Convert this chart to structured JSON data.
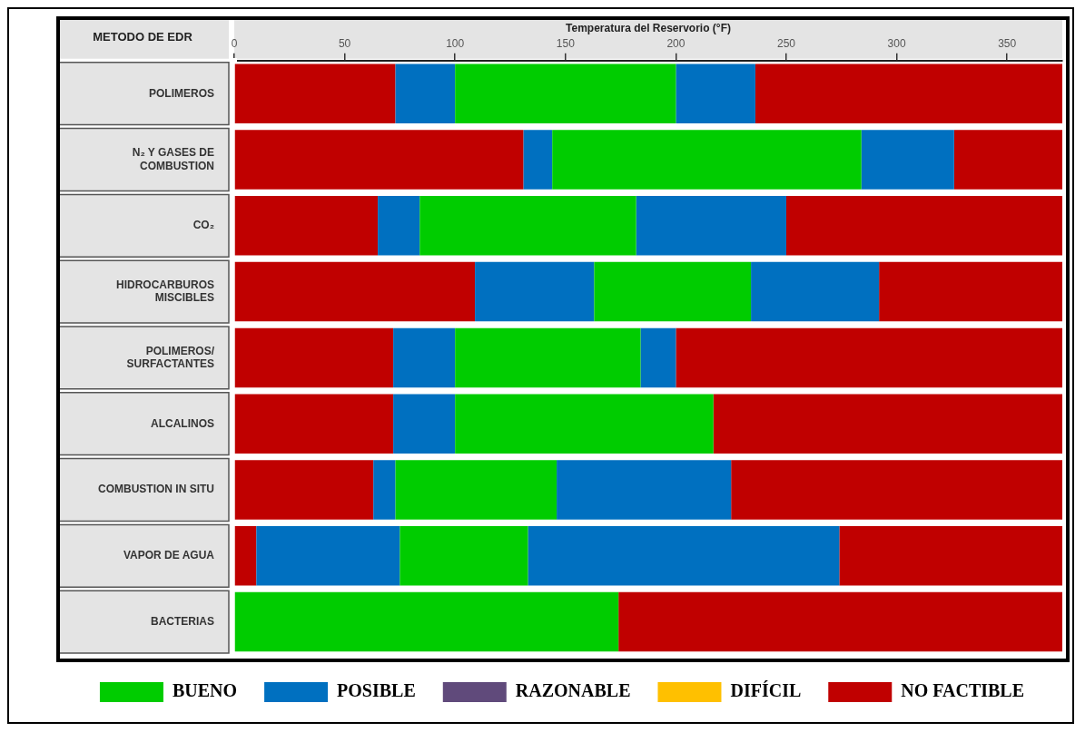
{
  "chart_data": {
    "type": "bar",
    "orientation": "horizontal",
    "xlabel": "Temperatura del Reservorio (°F)",
    "ylabel": "METODO DE EDR",
    "categories": [
      "POLIMEROS",
      "N₂ Y GASES DE COMBUSTION",
      "CO₂",
      "HIDROCARBUROS MISCIBLES",
      "POLIMEROS/SURFACTANTES",
      "ALCALINOS",
      "COMBUSTION IN SITU",
      "VAPOR DE AGUA",
      "BACTERIAS"
    ],
    "xlim": [
      0,
      375
    ],
    "xticks": [
      0,
      50,
      100,
      150,
      200,
      250,
      300,
      350
    ],
    "legend": "bottom",
    "series": [
      {
        "name": "BUENO",
        "color": "#00cc00",
        "base": [
          100,
          144,
          84,
          163,
          100,
          100,
          73,
          75,
          0
        ],
        "values": [
          100,
          140,
          98,
          71,
          84,
          117,
          73,
          58,
          174
        ]
      },
      {
        "name": "POSIBLE",
        "color": "#0070c0",
        "base": [
          73,
          131,
          65,
          109,
          72,
          72,
          63,
          10,
          null
        ],
        "values": [
          27,
          13,
          19,
          54,
          28,
          28,
          10,
          65,
          null
        ]
      },
      {
        "name": "RAZONABLE",
        "color": "#604a7b",
        "base": [
          null,
          null,
          null,
          null,
          null,
          null,
          null,
          null,
          null
        ],
        "values": [
          null,
          null,
          null,
          null,
          null,
          null,
          null,
          null,
          null
        ]
      },
      {
        "name": "DIFÍCIL",
        "color": "#ffc000",
        "base": [
          null,
          null,
          null,
          null,
          null,
          null,
          null,
          null,
          null
        ],
        "values": [
          null,
          null,
          null,
          null,
          null,
          null,
          null,
          null,
          null
        ]
      },
      {
        "name": "NO FACTIBLE",
        "color": "#c00000",
        "base": [
          0,
          0,
          0,
          0,
          0,
          0,
          0,
          0,
          null
        ],
        "values": [
          73,
          131,
          65,
          109,
          72,
          72,
          63,
          10,
          null
        ]
      },
      {
        "color": "#0070c0",
        "base": [
          200,
          284,
          182,
          234,
          184,
          null,
          146,
          133,
          null
        ],
        "values": [
          36,
          42,
          68,
          58,
          16,
          null,
          79,
          141,
          null
        ]
      },
      {
        "color": "#c00000",
        "base": [
          236,
          326,
          250,
          292,
          200,
          217,
          225,
          274,
          174
        ],
        "values": [
          139,
          49,
          125,
          83,
          175,
          158,
          150,
          101,
          201
        ]
      }
    ]
  }
}
